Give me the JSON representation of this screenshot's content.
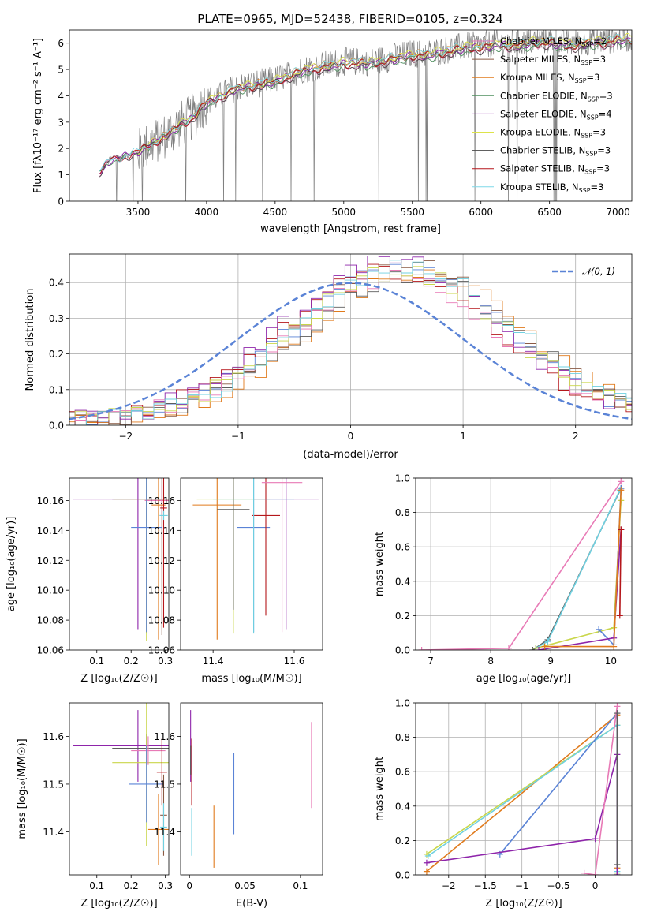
{
  "figure": {
    "title": "PLATE=0965, MJD=52438, FIBERID=0105, z=0.324"
  },
  "colors": {
    "blue": "#5a83d6",
    "orange": "#e07a1c",
    "gray": "#5c5c5c",
    "red": "#b5171b",
    "purple": "#8e24aa",
    "brown": "#8a5a44",
    "pink": "#e87ab6",
    "olive": "#c9d64a",
    "cyan": "#6fd0e0",
    "spectrum": "#808080",
    "chabrier_miles": "#e87ab6",
    "salpeter_miles": "#8a5a44",
    "kroupa_miles": "#e07a1c",
    "chabrier_elodie": "#4f8f5f",
    "salpeter_elodie": "#8e24aa",
    "kroupa_elodie": "#dde34a",
    "chabrier_stelib": "#4a4a4a",
    "salpeter_stelib": "#b5171b",
    "kroupa_stelib": "#7fd8e8"
  },
  "chart_data": [
    {
      "id": "spectrum",
      "type": "line",
      "xlabel": "wavelength [Angstrom, rest frame]",
      "ylabel": "Flux [fλ10⁻¹⁷ erg cm⁻² s⁻¹ A⁻¹]",
      "xlim": [
        3000,
        7100
      ],
      "ylim": [
        0,
        6.5
      ],
      "xticks": [
        3500,
        4000,
        4500,
        5000,
        5500,
        6000,
        6500,
        7000
      ],
      "yticks": [
        0,
        1,
        2,
        3,
        4,
        5,
        6
      ],
      "grid": false,
      "legend_loc": "upper right",
      "observed": {
        "x": [
          3220,
          3300,
          3400,
          3500,
          3600,
          3700,
          3800,
          3900,
          4000,
          4100,
          4200,
          4300,
          4400,
          4500,
          4600,
          4700,
          4800,
          4900,
          5000,
          5100,
          5200,
          5300,
          5400,
          5500,
          5600,
          5700,
          5800,
          5900,
          6000,
          6100,
          6200,
          6300,
          6400,
          6500,
          6600,
          6700,
          6800,
          6900,
          7000,
          7100
        ],
        "y": [
          1.1,
          1.6,
          1.7,
          1.9,
          2.2,
          2.5,
          2.9,
          3.2,
          3.8,
          4.0,
          4.3,
          4.4,
          4.5,
          4.6,
          4.8,
          5.0,
          5.1,
          5.2,
          5.3,
          5.3,
          5.3,
          5.4,
          5.5,
          5.6,
          5.6,
          5.7,
          5.8,
          5.9,
          5.9,
          6.0,
          6.0,
          6.0,
          6.1,
          6.1,
          6.0,
          6.0,
          6.1,
          6.1,
          6.2,
          6.2
        ]
      },
      "series": [
        {
          "name": "Chabrier MILES, N_SSP=2",
          "color_key": "chabrier_miles"
        },
        {
          "name": "Salpeter MILES, N_SSP=3",
          "color_key": "salpeter_miles"
        },
        {
          "name": "Kroupa MILES, N_SSP=3",
          "color_key": "kroupa_miles"
        },
        {
          "name": "Chabrier ELODIE, N_SSP=3",
          "color_key": "chabrier_elodie"
        },
        {
          "name": "Salpeter ELODIE, N_SSP=4",
          "color_key": "salpeter_elodie"
        },
        {
          "name": "Kroupa ELODIE, N_SSP=3",
          "color_key": "kroupa_elodie"
        },
        {
          "name": "Chabrier STELIB, N_SSP=3",
          "color_key": "chabrier_stelib"
        },
        {
          "name": "Salpeter STELIB, N_SSP=3",
          "color_key": "salpeter_stelib"
        },
        {
          "name": "Kroupa STELIB, N_SSP=3",
          "color_key": "kroupa_stelib"
        }
      ],
      "model_start": [
        3220,
        3500,
        3500,
        3220,
        3220,
        3500,
        3220,
        3220,
        3220
      ]
    },
    {
      "id": "residuals",
      "type": "line",
      "xlabel": "(data-model)/error",
      "ylabel": "Normed distribution",
      "xlim": [
        -2.5,
        2.5
      ],
      "ylim": [
        0,
        0.48
      ],
      "xticks": [
        -2,
        -1,
        0,
        1,
        2
      ],
      "yticks": [
        0.0,
        0.1,
        0.2,
        0.3,
        0.4
      ],
      "grid": true,
      "legend_loc": "upper right",
      "gaussian_label": "𝒩(0, 1)",
      "hist_peak_shift": [
        0.45,
        0.6,
        0.55,
        0.35,
        0.35,
        0.5,
        0.4,
        0.45,
        0.5
      ],
      "hist_peak_height": [
        0.43,
        0.42,
        0.41,
        0.42,
        0.45,
        0.44,
        0.4,
        0.42,
        0.43
      ]
    },
    {
      "id": "z_age",
      "type": "scatter",
      "xlabel": "Z [log₁₀(Z/Z☉)]",
      "ylabel": "age  [log₁₀(age/yr)]",
      "xlim": [
        0.02,
        0.31
      ],
      "ylim": [
        10.06,
        10.175
      ],
      "xticks": [
        0.1,
        0.2,
        0.3
      ],
      "yticks": [
        10.06,
        10.08,
        10.1,
        10.12,
        10.14,
        10.16
      ],
      "points": [
        {
          "x": 0.29,
          "y": 10.16,
          "xerr": 0.045,
          "yerr": 0.09,
          "color_key": "brown"
        },
        {
          "x": 0.29,
          "y": 10.16,
          "xerr": 0.05,
          "yerr": 0.01,
          "color_key": "pink"
        },
        {
          "x": 0.28,
          "y": 10.157,
          "xerr": 0.02,
          "yerr": 0.09,
          "color_key": "orange"
        },
        {
          "x": 0.245,
          "y": 10.161,
          "xerr": 0.1,
          "yerr": 0.09,
          "color_key": "gray"
        },
        {
          "x": 0.22,
          "y": 10.161,
          "xerr": 0.19,
          "yerr": 0.087,
          "color_key": "purple"
        },
        {
          "x": 0.245,
          "y": 10.161,
          "xerr": 0.095,
          "yerr": 0.095,
          "color_key": "olive"
        },
        {
          "x": 0.245,
          "y": 10.142,
          "xerr": 0.045,
          "yerr": 0.07,
          "color_key": "blue"
        },
        {
          "x": 0.295,
          "y": 10.155,
          "xerr": 0.01,
          "yerr": 0.08,
          "color_key": "red"
        },
        {
          "x": 0.295,
          "y": 10.15,
          "xerr": 0.012,
          "yerr": 0.003,
          "color_key": "cyan"
        }
      ]
    },
    {
      "id": "mass_age",
      "type": "scatter",
      "xlabel": "mass [log₁₀(M/M☉)]",
      "ylabel": "",
      "xlim": [
        11.32,
        11.67
      ],
      "ylim": [
        10.06,
        10.175
      ],
      "xticks": [
        11.4,
        11.6
      ],
      "yticks": [
        10.06,
        10.08,
        10.1,
        10.12,
        10.14,
        10.16
      ],
      "points": [
        {
          "x": 11.41,
          "y": 10.157,
          "xerr": 0.06,
          "yerr": 0.09,
          "color_key": "orange"
        },
        {
          "x": 11.45,
          "y": 10.161,
          "xerr": 0.09,
          "yerr": 0.09,
          "color_key": "olive"
        },
        {
          "x": 11.45,
          "y": 10.154,
          "xerr": 0.04,
          "yerr": 0.067,
          "color_key": "gray"
        },
        {
          "x": 11.5,
          "y": 10.142,
          "xerr": 0.04,
          "yerr": 0.07,
          "color_key": "blue"
        },
        {
          "x": 11.53,
          "y": 10.15,
          "xerr": 0.035,
          "yerr": 0.067,
          "color_key": "red"
        },
        {
          "x": 11.58,
          "y": 10.161,
          "xerr": 0.08,
          "yerr": 0.087,
          "color_key": "purple"
        },
        {
          "x": 11.57,
          "y": 10.172,
          "xerr": 0.05,
          "yerr": 0.1,
          "color_key": "pink"
        },
        {
          "x": 11.5,
          "y": 10.161,
          "xerr": 0.1,
          "yerr": 0.09,
          "color_key": "cyan"
        }
      ]
    },
    {
      "id": "age_weight",
      "type": "line",
      "xlabel": "age  [log₁₀(age/yr)]",
      "ylabel": "mass weight",
      "xlim": [
        6.75,
        10.35
      ],
      "ylim": [
        0,
        1
      ],
      "xticks": [
        7,
        8,
        9,
        10
      ],
      "yticks": [
        0.0,
        0.2,
        0.4,
        0.6,
        0.8,
        1.0
      ],
      "grid": true,
      "series": [
        {
          "color_key": "pink",
          "x": [
            6.85,
            8.3,
            10.17
          ],
          "y": [
            0.0,
            0.01,
            0.98
          ]
        },
        {
          "color_key": "gray",
          "x": [
            8.7,
            8.95,
            10.17
          ],
          "y": [
            0.0,
            0.06,
            0.94
          ]
        },
        {
          "color_key": "cyan",
          "x": [
            8.75,
            8.95,
            10.15
          ],
          "y": [
            0.01,
            0.05,
            0.93
          ]
        },
        {
          "color_key": "olive",
          "x": [
            8.75,
            10.05,
            10.17
          ],
          "y": [
            0.01,
            0.13,
            0.87
          ]
        },
        {
          "color_key": "blue",
          "x": [
            9.8,
            10.05,
            10.17
          ],
          "y": [
            0.12,
            0.03,
            0.94
          ]
        },
        {
          "color_key": "purple",
          "x": [
            8.8,
            10.05,
            10.17
          ],
          "y": [
            0.0,
            0.07,
            0.7
          ]
        },
        {
          "color_key": "orange",
          "x": [
            8.9,
            10.05,
            10.17
          ],
          "y": [
            0.02,
            0.02,
            0.93
          ]
        },
        {
          "color_key": "red",
          "x": [
            10.15,
            10.17
          ],
          "y": [
            0.2,
            0.7
          ]
        }
      ]
    },
    {
      "id": "z_mass",
      "type": "scatter",
      "xlabel": "Z [log₁₀(Z/Z☉)]",
      "ylabel": "mass [log₁₀(M/M☉)]",
      "xlim": [
        0.02,
        0.31
      ],
      "ylim": [
        11.31,
        11.67
      ],
      "xticks": [
        0.1,
        0.2,
        0.3
      ],
      "yticks": [
        11.4,
        11.5,
        11.6
      ],
      "points": [
        {
          "x": 0.22,
          "y": 11.58,
          "xerr": 0.19,
          "yerr": 0.075,
          "color_key": "purple"
        },
        {
          "x": 0.245,
          "y": 11.575,
          "xerr": 0.1,
          "yerr": 0.03,
          "color_key": "gray"
        },
        {
          "x": 0.245,
          "y": 11.545,
          "xerr": 0.1,
          "yerr": 0.175,
          "color_key": "olive"
        },
        {
          "x": 0.25,
          "y": 11.57,
          "xerr": 0.05,
          "yerr": 0.03,
          "color_key": "pink"
        },
        {
          "x": 0.245,
          "y": 11.5,
          "xerr": 0.05,
          "yerr": 0.08,
          "color_key": "blue"
        },
        {
          "x": 0.29,
          "y": 11.525,
          "xerr": 0.015,
          "yerr": 0.07,
          "color_key": "red"
        },
        {
          "x": 0.28,
          "y": 11.405,
          "xerr": 0.03,
          "yerr": 0.075,
          "color_key": "orange"
        },
        {
          "x": 0.295,
          "y": 11.435,
          "xerr": 0.01,
          "yerr": 0.085,
          "color_key": "brown"
        },
        {
          "x": 0.295,
          "y": 11.41,
          "xerr": 0.01,
          "yerr": 0.05,
          "color_key": "cyan"
        }
      ]
    },
    {
      "id": "ebv_mass",
      "type": "scatter",
      "xlabel": "E(B-V)",
      "ylabel": "",
      "xlim": [
        -0.008,
        0.12
      ],
      "ylim": [
        11.31,
        11.67
      ],
      "xticks": [
        0.0,
        0.05,
        0.1
      ],
      "yticks": [
        11.4,
        11.5,
        11.6
      ],
      "points": [
        {
          "x": 0.001,
          "y": 11.58,
          "yerr": 0.075,
          "color_key": "purple"
        },
        {
          "x": 0.001,
          "y": 11.55,
          "yerr": 0.03,
          "color_key": "gray"
        },
        {
          "x": 0.002,
          "y": 11.525,
          "yerr": 0.07,
          "color_key": "red"
        },
        {
          "x": 0.002,
          "y": 11.4,
          "yerr": 0.05,
          "color_key": "cyan"
        },
        {
          "x": 0.022,
          "y": 11.39,
          "yerr": 0.065,
          "color_key": "orange"
        },
        {
          "x": 0.04,
          "y": 11.48,
          "yerr": 0.085,
          "color_key": "blue"
        },
        {
          "x": 0.11,
          "y": 11.54,
          "yerr": 0.09,
          "color_key": "pink"
        }
      ]
    },
    {
      "id": "z_weight",
      "type": "line",
      "xlabel": "Z [log₁₀(Z/Z☉)]",
      "ylabel": "mass weight",
      "xlim": [
        -2.45,
        0.5
      ],
      "ylim": [
        0,
        1
      ],
      "xticks": [
        -2.0,
        -1.5,
        -1.0,
        -0.5,
        0.0
      ],
      "yticks": [
        0.0,
        0.2,
        0.4,
        0.6,
        0.8,
        1.0
      ],
      "grid": true,
      "series": [
        {
          "color_key": "orange",
          "x": [
            -2.3,
            0.3,
            0.3
          ],
          "y": [
            0.02,
            0.93,
            0.04
          ]
        },
        {
          "color_key": "olive",
          "x": [
            -2.3,
            0.3,
            0.3
          ],
          "y": [
            0.12,
            0.87,
            0.01
          ]
        },
        {
          "color_key": "cyan",
          "x": [
            -2.28,
            0.3,
            0.3
          ],
          "y": [
            0.11,
            0.87,
            0.02
          ]
        },
        {
          "color_key": "blue",
          "x": [
            -1.3,
            0.3,
            0.3
          ],
          "y": [
            0.12,
            0.94,
            0.0
          ]
        },
        {
          "color_key": "purple",
          "x": [
            -2.3,
            0.0,
            0.3,
            0.3
          ],
          "y": [
            0.07,
            0.21,
            0.7,
            0.0
          ]
        },
        {
          "color_key": "pink",
          "x": [
            -0.15,
            0.0,
            0.3
          ],
          "y": [
            0.01,
            0.0,
            0.98
          ]
        },
        {
          "color_key": "gray",
          "x": [
            0.3,
            0.3
          ],
          "y": [
            0.06,
            0.94
          ]
        }
      ]
    }
  ]
}
